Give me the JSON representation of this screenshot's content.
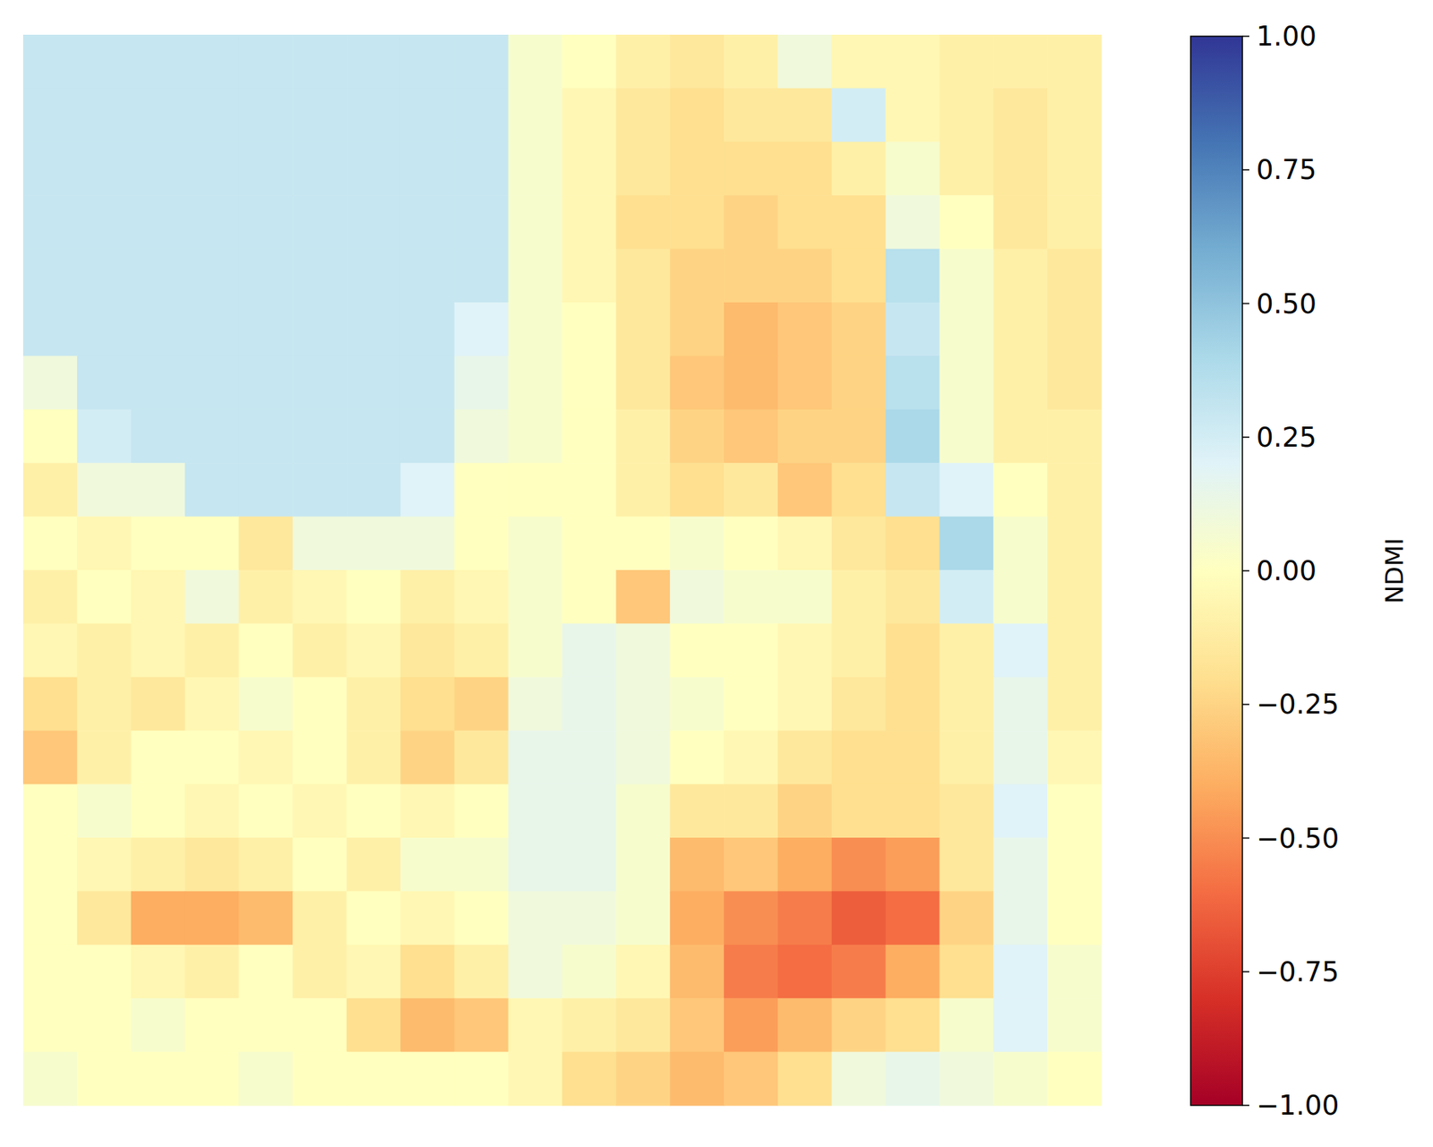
{
  "chart_data": {
    "type": "heatmap",
    "color": "RdYlBu",
    "tick_labels": false,
    "cells": [
      [
        0.3,
        0.3,
        0.3,
        0.3,
        0.3,
        0.3,
        0.3,
        0.3,
        0.3,
        0.05,
        0.0,
        -0.1,
        -0.15,
        -0.1,
        0.1,
        -0.05,
        -0.05,
        -0.1,
        -0.1,
        -0.1
      ],
      [
        0.3,
        0.3,
        0.3,
        0.3,
        0.3,
        0.3,
        0.3,
        0.3,
        0.3,
        0.05,
        -0.05,
        -0.15,
        -0.2,
        -0.15,
        -0.15,
        0.25,
        -0.05,
        -0.1,
        -0.15,
        -0.1
      ],
      [
        0.3,
        0.3,
        0.3,
        0.3,
        0.3,
        0.3,
        0.3,
        0.3,
        0.3,
        0.05,
        -0.05,
        -0.15,
        -0.2,
        -0.2,
        -0.2,
        -0.1,
        0.05,
        -0.1,
        -0.15,
        -0.1
      ],
      [
        0.3,
        0.3,
        0.3,
        0.3,
        0.3,
        0.3,
        0.3,
        0.3,
        0.3,
        0.05,
        -0.05,
        -0.2,
        -0.2,
        -0.25,
        -0.2,
        -0.2,
        0.1,
        0.0,
        -0.15,
        -0.1
      ],
      [
        0.3,
        0.3,
        0.3,
        0.3,
        0.3,
        0.3,
        0.3,
        0.3,
        0.3,
        0.05,
        -0.05,
        -0.15,
        -0.25,
        -0.25,
        -0.25,
        -0.2,
        0.35,
        0.05,
        -0.1,
        -0.15
      ],
      [
        0.3,
        0.3,
        0.3,
        0.3,
        0.3,
        0.3,
        0.3,
        0.3,
        0.2,
        0.05,
        0.0,
        -0.15,
        -0.25,
        -0.35,
        -0.3,
        -0.25,
        0.3,
        0.05,
        -0.1,
        -0.15
      ],
      [
        0.1,
        0.3,
        0.3,
        0.3,
        0.3,
        0.3,
        0.3,
        0.3,
        0.15,
        0.05,
        0.0,
        -0.15,
        -0.3,
        -0.35,
        -0.3,
        -0.25,
        0.35,
        0.05,
        -0.1,
        -0.15
      ],
      [
        0.0,
        0.25,
        0.3,
        0.3,
        0.3,
        0.3,
        0.3,
        0.3,
        0.1,
        0.05,
        0.0,
        -0.1,
        -0.25,
        -0.3,
        -0.25,
        -0.25,
        0.4,
        0.05,
        -0.1,
        -0.1
      ],
      [
        -0.1,
        0.1,
        0.1,
        0.3,
        0.3,
        0.3,
        0.3,
        0.2,
        0.0,
        0.0,
        0.0,
        -0.1,
        -0.2,
        -0.15,
        -0.3,
        -0.2,
        0.3,
        0.2,
        0.0,
        -0.1
      ],
      [
        0.0,
        -0.05,
        0.0,
        0.0,
        -0.15,
        0.1,
        0.1,
        0.1,
        0.0,
        0.05,
        0.0,
        0.0,
        0.05,
        0.0,
        -0.05,
        -0.15,
        -0.2,
        0.4,
        0.05,
        -0.1
      ],
      [
        -0.1,
        0.0,
        -0.05,
        0.1,
        -0.1,
        -0.05,
        0.0,
        -0.1,
        -0.05,
        0.05,
        0.0,
        -0.3,
        0.1,
        0.05,
        0.05,
        -0.1,
        -0.15,
        0.25,
        0.05,
        -0.1
      ],
      [
        -0.05,
        -0.1,
        -0.05,
        -0.1,
        0.0,
        -0.1,
        -0.05,
        -0.15,
        -0.1,
        0.05,
        0.15,
        0.1,
        0.0,
        0.0,
        -0.05,
        -0.1,
        -0.2,
        -0.1,
        0.2,
        -0.1
      ],
      [
        -0.2,
        -0.1,
        -0.15,
        -0.05,
        0.05,
        0.0,
        -0.1,
        -0.2,
        -0.25,
        0.1,
        0.15,
        0.1,
        0.05,
        0.0,
        -0.05,
        -0.15,
        -0.2,
        -0.1,
        0.15,
        -0.1
      ],
      [
        -0.3,
        -0.1,
        0.0,
        0.0,
        -0.05,
        0.0,
        -0.1,
        -0.25,
        -0.15,
        0.15,
        0.15,
        0.1,
        0.0,
        -0.05,
        -0.15,
        -0.2,
        -0.2,
        -0.1,
        0.15,
        -0.05
      ],
      [
        0.0,
        0.05,
        0.0,
        -0.05,
        0.0,
        -0.05,
        0.0,
        -0.05,
        0.0,
        0.15,
        0.15,
        0.05,
        -0.15,
        -0.15,
        -0.25,
        -0.2,
        -0.2,
        -0.15,
        0.2,
        0.0
      ],
      [
        0.0,
        -0.05,
        -0.1,
        -0.15,
        -0.1,
        0.0,
        -0.1,
        0.05,
        0.05,
        0.15,
        0.15,
        0.05,
        -0.35,
        -0.3,
        -0.4,
        -0.5,
        -0.45,
        -0.15,
        0.15,
        0.0
      ],
      [
        0.0,
        -0.15,
        -0.4,
        -0.4,
        -0.35,
        -0.1,
        0.0,
        -0.05,
        0.0,
        0.1,
        0.1,
        0.05,
        -0.4,
        -0.5,
        -0.55,
        -0.65,
        -0.6,
        -0.25,
        0.15,
        0.0
      ],
      [
        0.0,
        0.0,
        -0.05,
        -0.1,
        0.0,
        -0.1,
        -0.05,
        -0.2,
        -0.1,
        0.1,
        0.05,
        -0.05,
        -0.35,
        -0.55,
        -0.6,
        -0.55,
        -0.4,
        -0.2,
        0.2,
        0.05
      ],
      [
        0.0,
        0.0,
        0.05,
        0.0,
        0.0,
        0.0,
        -0.2,
        -0.35,
        -0.3,
        -0.05,
        -0.1,
        -0.15,
        -0.3,
        -0.45,
        -0.35,
        -0.25,
        -0.2,
        0.05,
        0.2,
        0.05
      ],
      [
        0.05,
        0.0,
        0.0,
        0.0,
        0.05,
        0.0,
        0.0,
        0.0,
        0.0,
        -0.05,
        -0.2,
        -0.25,
        -0.35,
        -0.3,
        -0.2,
        0.1,
        0.15,
        0.1,
        0.05,
        0.0
      ]
    ],
    "colorbar": {
      "label": "NDMI",
      "range": [
        -1,
        1
      ],
      "ticks": [
        {
          "value": -1,
          "label": "−1.00"
        },
        {
          "value": -0.75,
          "label": "−0.75"
        },
        {
          "value": -0.5,
          "label": "−0.50"
        },
        {
          "value": -0.25,
          "label": "−0.25"
        },
        {
          "value": 0,
          "label": "0.00"
        },
        {
          "value": 0.25,
          "label": "0.25"
        },
        {
          "value": 0.5,
          "label": "0.50"
        },
        {
          "value": 0.75,
          "label": "0.75"
        },
        {
          "value": 1,
          "label": "1.00"
        }
      ]
    }
  }
}
